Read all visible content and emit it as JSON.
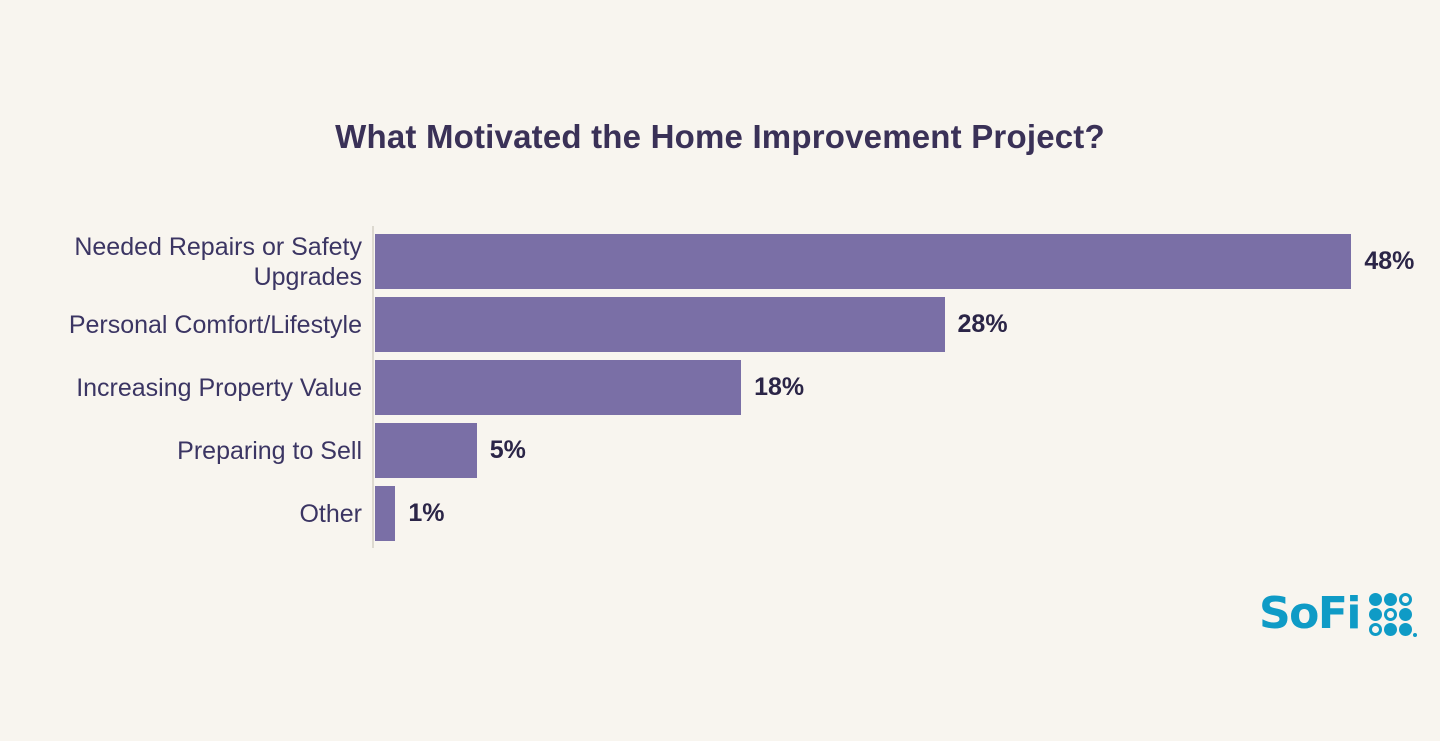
{
  "page": {
    "background": "#F8F5EF"
  },
  "chart_data": {
    "type": "bar",
    "orientation": "horizontal",
    "title": "What Motivated the Home Improvement Project?",
    "categories": [
      "Needed Repairs or Safety Upgrades",
      "Personal Comfort/Lifestyle",
      "Increasing Property Value",
      "Preparing to Sell",
      "Other"
    ],
    "values": [
      48,
      28,
      18,
      5,
      1
    ],
    "value_labels": [
      "48%",
      "28%",
      "18%",
      "5%",
      "1%"
    ],
    "xlabel": "",
    "ylabel": "",
    "xlim": [
      0,
      50
    ],
    "grid": false,
    "legend": false,
    "bar_color": "#7A6FA6",
    "axis_line_color": "#DDD9D0",
    "title_color": "#3A3157",
    "category_label_color": "#3B3563",
    "value_label_color": "#2B2547"
  },
  "branding": {
    "logo_text": "SoFi",
    "logo_color": "#0F9BC6",
    "logo_grid_icon": "sofi-dot-grid-icon",
    "logo_grid_pattern": [
      [
        1,
        1,
        0
      ],
      [
        1,
        0,
        1
      ],
      [
        0,
        1,
        1
      ]
    ]
  }
}
